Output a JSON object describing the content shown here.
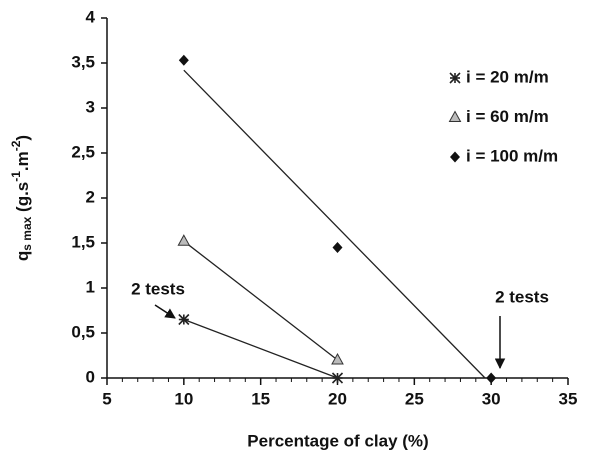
{
  "chart_data": {
    "type": "scatter",
    "x_label": "Percentage of clay (%)",
    "y_label_parts": [
      "q",
      "s max",
      " (g.s",
      "-1",
      ".m",
      "-2",
      ")"
    ],
    "xlim": [
      5,
      35
    ],
    "xticks": [
      5,
      10,
      15,
      20,
      25,
      30,
      35
    ],
    "ylim": [
      0,
      4
    ],
    "yticks": [
      0,
      {
        "value": 0.5,
        "label": "0,5"
      },
      1,
      {
        "value": 1.5,
        "label": "1,5"
      },
      2,
      {
        "value": 2.5,
        "label": "2,5"
      },
      3,
      {
        "value": 3.5,
        "label": "3,5"
      },
      4
    ],
    "series": [
      {
        "name": "i = 20 m/m",
        "marker": "asterisk",
        "color": "#222222",
        "x": [
          10,
          20
        ],
        "values": [
          0.65,
          0
        ],
        "trend_x": [
          10,
          20
        ],
        "trend_y": [
          0.65,
          0
        ]
      },
      {
        "name": "i = 60 m/m",
        "marker": "triangle",
        "color": "#bbbbbb",
        "x": [
          10,
          20
        ],
        "values": [
          1.52,
          0.2
        ],
        "trend_x": [
          10,
          20
        ],
        "trend_y": [
          1.52,
          0.2
        ]
      },
      {
        "name": "i = 100 m/m",
        "marker": "diamond",
        "color": "#111111",
        "x": [
          10,
          20,
          30
        ],
        "values": [
          3.53,
          1.45,
          0
        ],
        "trend_x": [
          10,
          29.6
        ],
        "trend_y": [
          3.42,
          0
        ]
      }
    ],
    "annotations": [
      "2 tests",
      "2 tests"
    ]
  }
}
